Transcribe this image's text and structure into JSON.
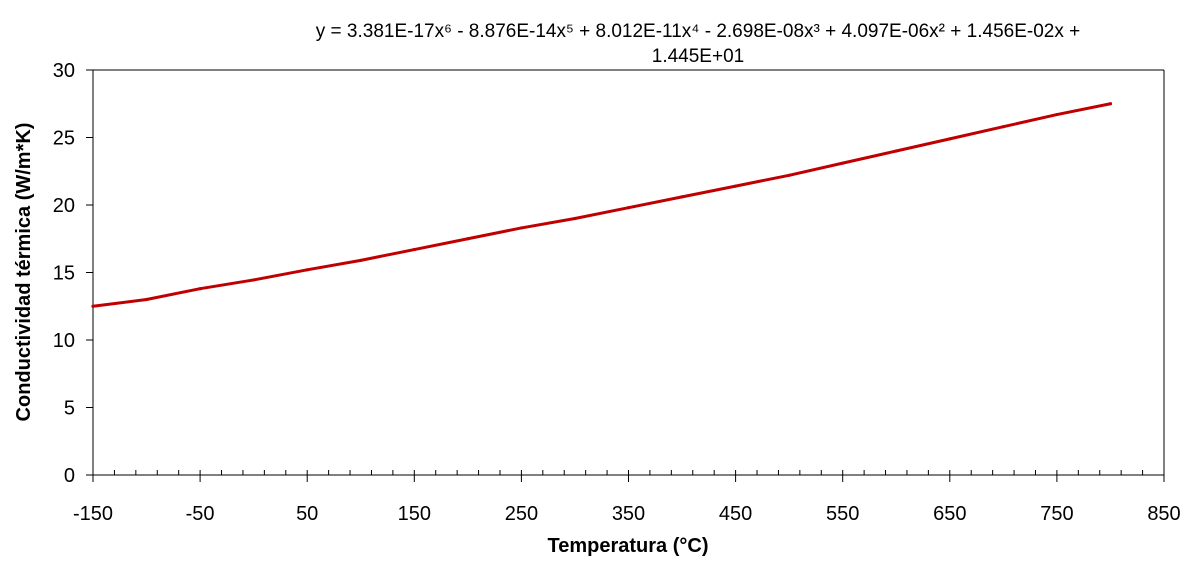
{
  "chart_data": {
    "type": "line",
    "title": "",
    "xlabel": "Temperatura (°C)",
    "ylabel": "Conductividad térmica (W/m*K)",
    "xlim": [
      -150,
      850
    ],
    "ylim": [
      0,
      30
    ],
    "x_ticks": [
      -150,
      -50,
      50,
      150,
      250,
      350,
      450,
      550,
      650,
      750,
      850
    ],
    "y_ticks": [
      0,
      5,
      10,
      15,
      20,
      25,
      30
    ],
    "grid": false,
    "legend": "none",
    "line_color": "#c00000",
    "trendline": {
      "equation_line1": "y = 3.381E-17x⁶ - 8.876E-14x⁵ + 8.012E-11x⁴ - 2.698E-08x³ + 4.097E-06x² + 1.456E-02x +",
      "equation_line2": "1.445E+01",
      "coefficients": [
        14.45,
        0.01456,
        4.097e-06,
        -2.698e-08,
        8.012e-11,
        -8.876e-14,
        3.381e-17
      ]
    },
    "series": [
      {
        "x": [
          -150,
          -100,
          -50,
          0,
          50,
          100,
          150,
          200,
          250,
          300,
          350,
          400,
          450,
          500,
          550,
          600,
          650,
          700,
          750,
          800
        ],
        "values": [
          12.5,
          13.0,
          13.8,
          14.45,
          15.2,
          15.9,
          16.7,
          17.5,
          18.3,
          19.0,
          19.8,
          20.6,
          21.4,
          22.2,
          23.1,
          24.0,
          24.9,
          25.8,
          26.7,
          27.5
        ]
      }
    ]
  }
}
